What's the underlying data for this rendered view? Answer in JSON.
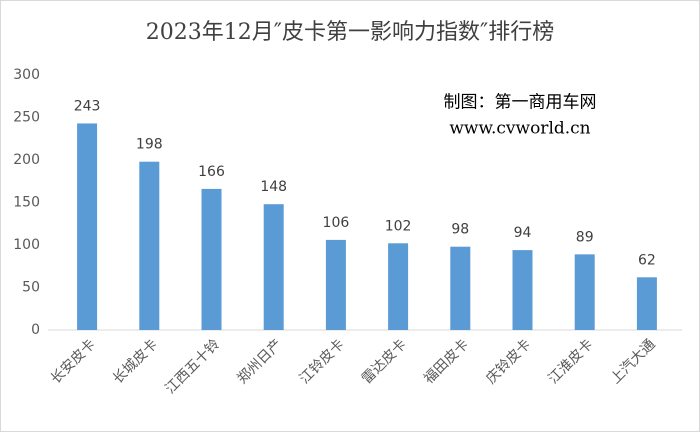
{
  "chart_data": {
    "type": "bar",
    "title": "2023年12月″皮卡第一影响力指数″排行榜",
    "annotations": [
      "制图：第一商用车网",
      "www.cvworld.cn"
    ],
    "categories": [
      "长安皮卡",
      "长城皮卡",
      "江西五十铃",
      "郑州日产",
      "江铃皮卡",
      "雷达皮卡",
      "福田皮卡",
      "庆铃皮卡",
      "江淮皮卡",
      "上汽大通"
    ],
    "values": [
      243,
      198,
      166,
      148,
      106,
      102,
      98,
      94,
      89,
      62
    ],
    "color": "#5b9bd5",
    "ylim": [
      0,
      300
    ],
    "yticks": [
      0,
      50,
      100,
      150,
      200,
      250,
      300
    ],
    "grid": false
  }
}
